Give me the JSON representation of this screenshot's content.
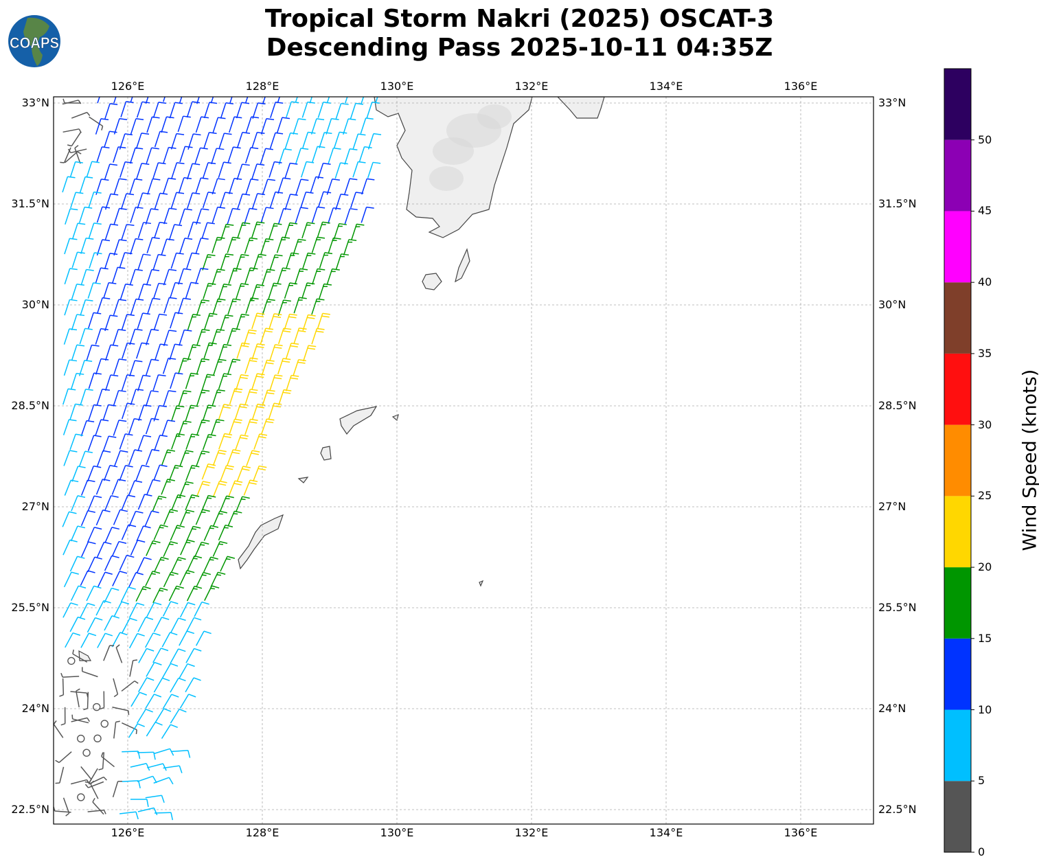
{
  "title": {
    "line1": "Tropical Storm Nakri (2025) OSCAT-3",
    "line2": "Descending Pass 2025-10-11 04:35Z"
  },
  "logo": {
    "text": "COAPS"
  },
  "map": {
    "lon_range": [
      124.9,
      137.1
    ],
    "lat_range": [
      22.25,
      33.1
    ],
    "lon_ticks": [
      {
        "v": 126,
        "label": "126°E"
      },
      {
        "v": 128,
        "label": "128°E"
      },
      {
        "v": 130,
        "label": "130°E"
      },
      {
        "v": 132,
        "label": "132°E"
      },
      {
        "v": 134,
        "label": "134°E"
      },
      {
        "v": 136,
        "label": "136°E"
      }
    ],
    "lat_ticks": [
      {
        "v": 33,
        "label": "33°N"
      },
      {
        "v": 31.5,
        "label": "31.5°N"
      },
      {
        "v": 30,
        "label": "30°N"
      },
      {
        "v": 28.5,
        "label": "28.5°N"
      },
      {
        "v": 27,
        "label": "27°N"
      },
      {
        "v": 25.5,
        "label": "25.5°N"
      },
      {
        "v": 24,
        "label": "24°N"
      },
      {
        "v": 22.5,
        "label": "22.5°N"
      }
    ]
  },
  "colorbar": {
    "label": "Wind Speed (knots)",
    "ticks": [
      "0",
      "5",
      "10",
      "15",
      "20",
      "25",
      "30",
      "35",
      "40",
      "45",
      "50"
    ],
    "colors": [
      "#555555",
      "#00bfff",
      "#0033ff",
      "#009600",
      "#ffd700",
      "#ff8c00",
      "#ff0f0f",
      "#7f3f2a",
      "#ff00ff",
      "#8c00b4",
      "#2d0060"
    ],
    "max": 55
  }
}
